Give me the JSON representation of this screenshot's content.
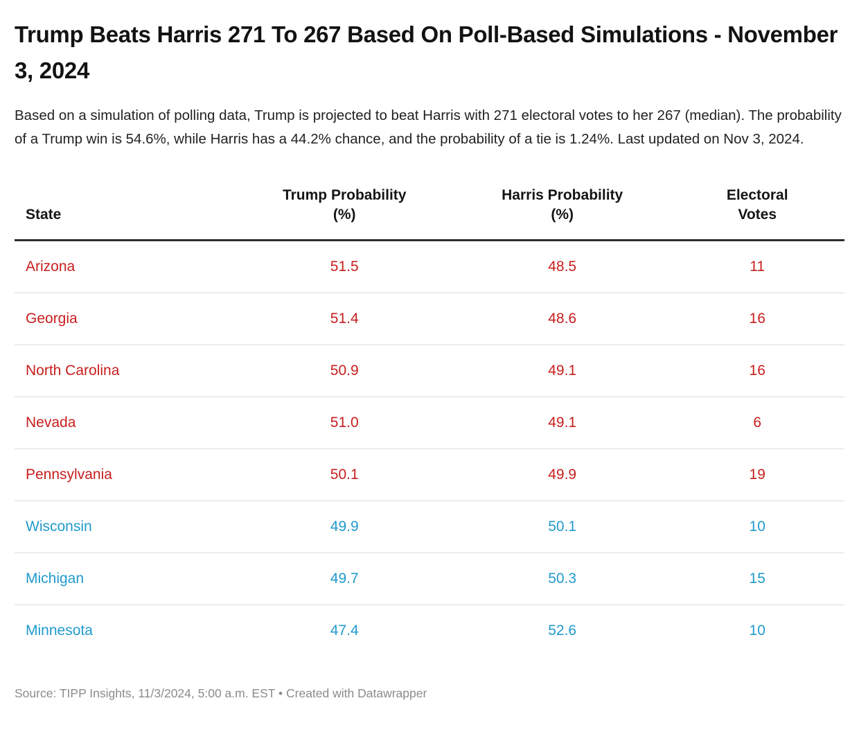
{
  "chart_data": {
    "type": "table",
    "title": "Trump Beats Harris 271 To 267 Based On Poll-Based Simulations - November 3, 2024",
    "intro": "Based on a simulation of polling data, Trump is projected to beat Harris with 271 electoral votes to her 267 (median). The probability of a Trump win is 54.6%, while Harris has a 44.2% chance, and the probability of a tie is 1.24%. Last updated on Nov 3, 2024.",
    "columns": [
      {
        "label": "State",
        "align": "left"
      },
      {
        "label": "Trump Probability\n(%)",
        "align": "center"
      },
      {
        "label": "Harris Probability\n(%)",
        "align": "center"
      },
      {
        "label": "Electoral\nVotes",
        "align": "center"
      }
    ],
    "rows": [
      {
        "state": "Arizona",
        "trump_probability": "51.5",
        "harris_probability": "48.5",
        "electoral_votes": "11",
        "leader": "trump"
      },
      {
        "state": "Georgia",
        "trump_probability": "51.4",
        "harris_probability": "48.6",
        "electoral_votes": "16",
        "leader": "trump"
      },
      {
        "state": "North Carolina",
        "trump_probability": "50.9",
        "harris_probability": "49.1",
        "electoral_votes": "16",
        "leader": "trump"
      },
      {
        "state": "Nevada",
        "trump_probability": "51.0",
        "harris_probability": "49.1",
        "electoral_votes": "6",
        "leader": "trump"
      },
      {
        "state": "Pennsylvania",
        "trump_probability": "50.1",
        "harris_probability": "49.9",
        "electoral_votes": "19",
        "leader": "trump"
      },
      {
        "state": "Wisconsin",
        "trump_probability": "49.9",
        "harris_probability": "50.1",
        "electoral_votes": "10",
        "leader": "harris"
      },
      {
        "state": "Michigan",
        "trump_probability": "49.7",
        "harris_probability": "50.3",
        "electoral_votes": "15",
        "leader": "harris"
      },
      {
        "state": "Minnesota",
        "trump_probability": "47.4",
        "harris_probability": "52.6",
        "electoral_votes": "10",
        "leader": "harris"
      }
    ],
    "source": "TIPP Insights, 11/3/2024, 5:00 a.m. EST"
  },
  "colors": {
    "trump": "#c71e1d",
    "harris": "#1f9acd"
  },
  "footer": {
    "source": "Source: TIPP Insights, 11/3/2024, 5:00 a.m. EST",
    "separator": " • ",
    "attribution": "Created with Datawrapper"
  }
}
